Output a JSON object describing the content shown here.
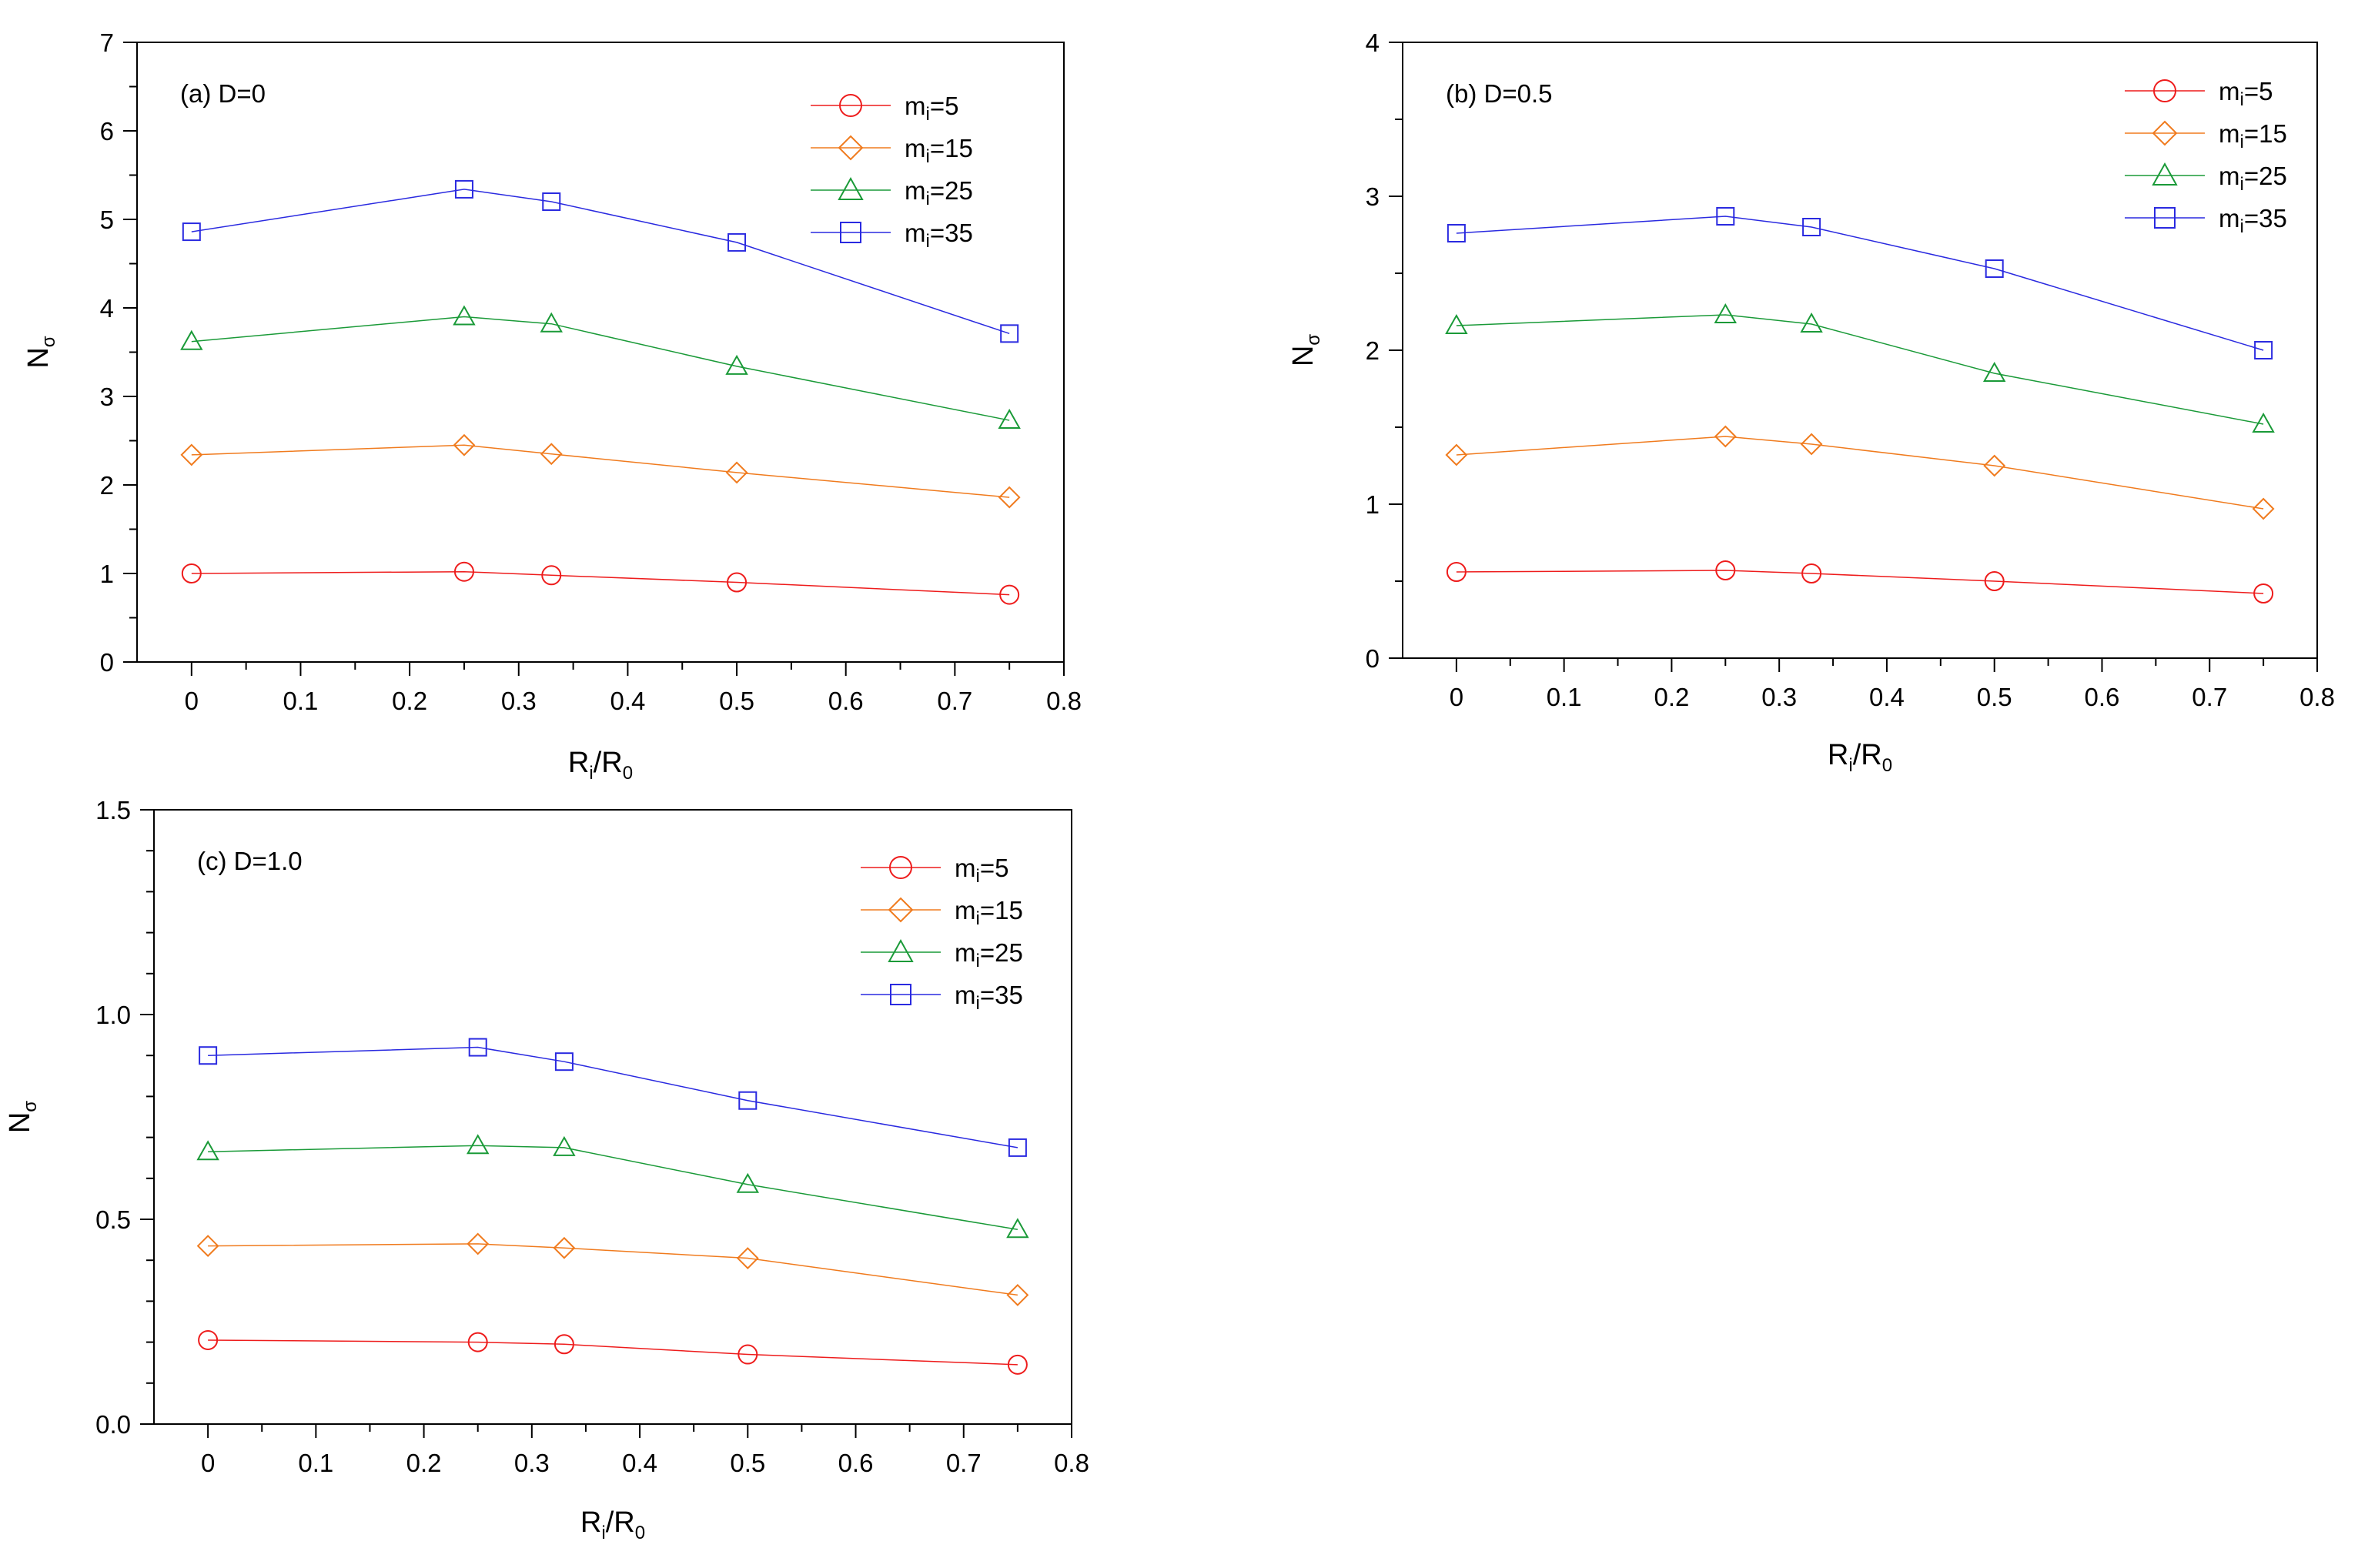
{
  "figure": {
    "x_axis_title": "Ri/R0",
    "y_axis_title": "Nσ"
  },
  "chart_data": [
    {
      "type": "line",
      "panel_label": "(a) D=0",
      "xlabel": "Ri/R0",
      "ylabel": "Nσ",
      "xlim": [
        -0.05,
        0.8
      ],
      "ylim": [
        0,
        7
      ],
      "xticks": [
        "0",
        "0.1",
        "0.2",
        "0.3",
        "0.4",
        "0.5",
        "0.6",
        "0.7",
        "0.8"
      ],
      "yticks": [
        "0",
        "1",
        "2",
        "3",
        "4",
        "5",
        "6",
        "7"
      ],
      "x": [
        0,
        0.25,
        0.33,
        0.5,
        0.75
      ],
      "series": [
        {
          "name": "mi=5",
          "label_main": "m",
          "label_sub": "i",
          "label_tail": "=5",
          "color": "#ee1c1c",
          "marker": "circle",
          "values": [
            1.0,
            1.02,
            0.98,
            0.9,
            0.76
          ]
        },
        {
          "name": "mi=15",
          "label_main": "m",
          "label_sub": "i",
          "label_tail": "=15",
          "color": "#f07b1e",
          "marker": "diamond",
          "values": [
            2.34,
            2.45,
            2.35,
            2.14,
            1.86
          ]
        },
        {
          "name": "mi=25",
          "label_main": "m",
          "label_sub": "i",
          "label_tail": "=25",
          "color": "#1a9a38",
          "marker": "triangle",
          "values": [
            3.62,
            3.9,
            3.82,
            3.34,
            2.73
          ]
        },
        {
          "name": "mi=35",
          "label_main": "m",
          "label_sub": "i",
          "label_tail": "=35",
          "color": "#2a2ae0",
          "marker": "square",
          "values": [
            4.86,
            5.34,
            5.2,
            4.74,
            3.71
          ]
        }
      ]
    },
    {
      "type": "line",
      "panel_label": "(b) D=0.5",
      "xlabel": "Ri/R0",
      "ylabel": "Nσ",
      "xlim": [
        -0.05,
        0.8
      ],
      "ylim": [
        0,
        4
      ],
      "xticks": [
        "0",
        "0.1",
        "0.2",
        "0.3",
        "0.4",
        "0.5",
        "0.6",
        "0.7",
        "0.8"
      ],
      "yticks": [
        "0",
        "1",
        "2",
        "3",
        "4"
      ],
      "x": [
        0,
        0.25,
        0.33,
        0.5,
        0.75
      ],
      "series": [
        {
          "name": "mi=5",
          "label_main": "m",
          "label_sub": "i",
          "label_tail": "=5",
          "color": "#ee1c1c",
          "marker": "circle",
          "values": [
            0.56,
            0.57,
            0.55,
            0.5,
            0.42
          ]
        },
        {
          "name": "mi=15",
          "label_main": "m",
          "label_sub": "i",
          "label_tail": "=15",
          "color": "#f07b1e",
          "marker": "diamond",
          "values": [
            1.32,
            1.44,
            1.39,
            1.25,
            0.97
          ]
        },
        {
          "name": "mi=25",
          "label_main": "m",
          "label_sub": "i",
          "label_tail": "=25",
          "color": "#1a9a38",
          "marker": "triangle",
          "values": [
            2.16,
            2.23,
            2.17,
            1.85,
            1.52
          ]
        },
        {
          "name": "mi=35",
          "label_main": "m",
          "label_sub": "i",
          "label_tail": "=35",
          "color": "#2a2ae0",
          "marker": "square",
          "values": [
            2.76,
            2.87,
            2.8,
            2.53,
            2.0
          ]
        }
      ]
    },
    {
      "type": "line",
      "panel_label": "(c) D=1.0",
      "xlabel": "Ri/R0",
      "ylabel": "Nσ",
      "xlim": [
        -0.05,
        0.8
      ],
      "ylim": [
        0,
        1.5
      ],
      "xticks": [
        "0",
        "0.1",
        "0.2",
        "0.3",
        "0.4",
        "0.5",
        "0.6",
        "0.7",
        "0.8"
      ],
      "yticks": [
        "0.0",
        "0.5",
        "1.0",
        "1.5"
      ],
      "x": [
        0,
        0.25,
        0.33,
        0.5,
        0.75
      ],
      "series": [
        {
          "name": "mi=5",
          "label_main": "m",
          "label_sub": "i",
          "label_tail": "=5",
          "color": "#ee1c1c",
          "marker": "circle",
          "values": [
            0.205,
            0.2,
            0.195,
            0.17,
            0.145
          ]
        },
        {
          "name": "mi=15",
          "label_main": "m",
          "label_sub": "i",
          "label_tail": "=15",
          "color": "#f07b1e",
          "marker": "diamond",
          "values": [
            0.435,
            0.44,
            0.43,
            0.405,
            0.315
          ]
        },
        {
          "name": "mi=25",
          "label_main": "m",
          "label_sub": "i",
          "label_tail": "=25",
          "color": "#1a9a38",
          "marker": "triangle",
          "values": [
            0.665,
            0.68,
            0.675,
            0.585,
            0.475
          ]
        },
        {
          "name": "mi=35",
          "label_main": "m",
          "label_sub": "i",
          "label_tail": "=35",
          "color": "#2a2ae0",
          "marker": "square",
          "values": [
            0.9,
            0.92,
            0.885,
            0.79,
            0.675
          ]
        }
      ]
    }
  ]
}
